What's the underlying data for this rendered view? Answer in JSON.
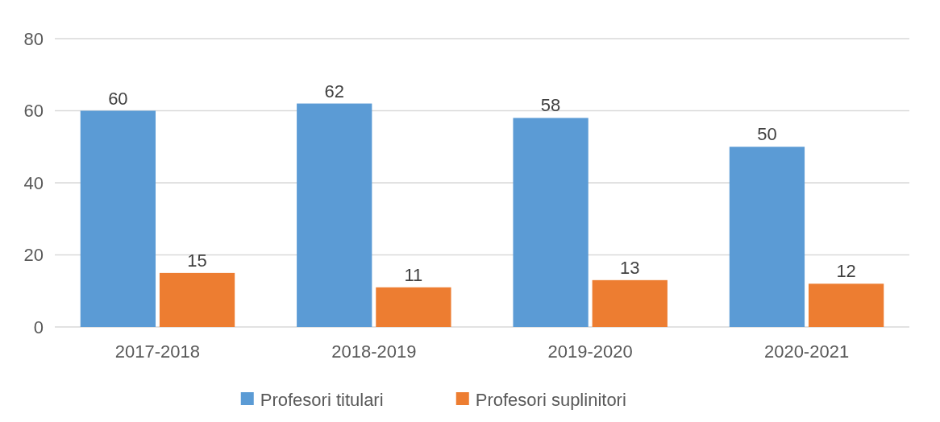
{
  "chart_data": {
    "type": "bar",
    "categories": [
      "2017-2018",
      "2018-2019",
      "2019-2020",
      "2020-2021"
    ],
    "series": [
      {
        "name": "Profesori titulari",
        "color": "#5b9bd5",
        "values": [
          60,
          62,
          58,
          50
        ]
      },
      {
        "name": "Profesori suplinitori",
        "color": "#ed7d31",
        "values": [
          15,
          11,
          13,
          12
        ]
      }
    ],
    "ylim": [
      0,
      80
    ],
    "yticks": [
      0,
      20,
      40,
      60,
      80
    ],
    "grid": "y",
    "legend": "bottom",
    "data_labels": true
  }
}
